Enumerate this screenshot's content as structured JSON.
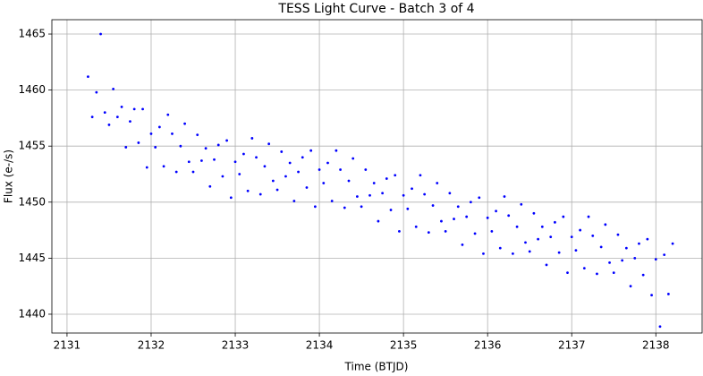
{
  "chart_data": {
    "type": "scatter",
    "title": "TESS Light Curve - Batch 3 of 4",
    "x_label": "Time (BTJD)",
    "y_label": "Flux (e-/s)",
    "grid": true,
    "color": "#0000ff",
    "xlim": [
      2130.82,
      2138.55
    ],
    "ylim": [
      1438.32,
      1466.28
    ],
    "xticks": [
      2131,
      2132,
      2133,
      2134,
      2135,
      2136,
      2137,
      2138
    ],
    "yticks": [
      1440,
      1445,
      1450,
      1455,
      1460,
      1465
    ],
    "x": [
      2131.25,
      2131.3,
      2131.35,
      2131.4,
      2131.45,
      2131.5,
      2131.55,
      2131.6,
      2131.65,
      2131.7,
      2131.75,
      2131.8,
      2131.85,
      2131.9,
      2131.95,
      2132.0,
      2132.05,
      2132.1,
      2132.15,
      2132.2,
      2132.25,
      2132.3,
      2132.35,
      2132.4,
      2132.45,
      2132.5,
      2132.55,
      2132.6,
      2132.65,
      2132.7,
      2132.75,
      2132.8,
      2132.85,
      2132.9,
      2132.95,
      2133.0,
      2133.05,
      2133.1,
      2133.15,
      2133.2,
      2133.25,
      2133.3,
      2133.35,
      2133.4,
      2133.45,
      2133.5,
      2133.55,
      2133.6,
      2133.65,
      2133.7,
      2133.75,
      2133.8,
      2133.85,
      2133.9,
      2133.95,
      2134.0,
      2134.05,
      2134.1,
      2134.15,
      2134.2,
      2134.25,
      2134.3,
      2134.35,
      2134.4,
      2134.45,
      2134.5,
      2134.55,
      2134.6,
      2134.65,
      2134.7,
      2134.75,
      2134.8,
      2134.85,
      2134.9,
      2134.95,
      2135.0,
      2135.05,
      2135.1,
      2135.15,
      2135.2,
      2135.25,
      2135.3,
      2135.35,
      2135.4,
      2135.45,
      2135.5,
      2135.55,
      2135.6,
      2135.65,
      2135.7,
      2135.75,
      2135.8,
      2135.85,
      2135.9,
      2135.95,
      2136.0,
      2136.05,
      2136.1,
      2136.15,
      2136.2,
      2136.25,
      2136.3,
      2136.35,
      2136.4,
      2136.45,
      2136.5,
      2136.55,
      2136.6,
      2136.65,
      2136.7,
      2136.75,
      2136.8,
      2136.85,
      2136.9,
      2136.95,
      2137.0,
      2137.05,
      2137.1,
      2137.15,
      2137.2,
      2137.25,
      2137.3,
      2137.35,
      2137.4,
      2137.45,
      2137.5,
      2137.55,
      2137.6,
      2137.65,
      2137.7,
      2137.75,
      2137.8,
      2137.85,
      2137.9,
      2137.95,
      2138.0,
      2138.05,
      2138.1,
      2138.15,
      2138.2
    ],
    "values": [
      1461.2,
      1457.6,
      1459.8,
      1465.0,
      1458.0,
      1456.9,
      1460.1,
      1457.6,
      1458.5,
      1454.9,
      1457.2,
      1458.3,
      1455.3,
      1458.3,
      1453.1,
      1456.1,
      1454.9,
      1456.7,
      1453.2,
      1457.8,
      1456.1,
      1452.7,
      1455.0,
      1457.0,
      1453.6,
      1452.7,
      1456.0,
      1453.7,
      1454.8,
      1451.4,
      1453.8,
      1455.1,
      1452.3,
      1455.5,
      1450.4,
      1453.6,
      1452.5,
      1454.3,
      1451.0,
      1455.7,
      1454.0,
      1450.7,
      1453.2,
      1455.2,
      1451.9,
      1451.1,
      1454.5,
      1452.3,
      1453.5,
      1450.1,
      1452.7,
      1454.0,
      1451.3,
      1454.6,
      1449.6,
      1452.9,
      1451.7,
      1453.5,
      1450.1,
      1454.6,
      1452.9,
      1449.5,
      1451.9,
      1453.9,
      1450.5,
      1449.6,
      1452.9,
      1450.6,
      1451.7,
      1448.3,
      1450.8,
      1452.1,
      1449.3,
      1452.4,
      1447.4,
      1450.6,
      1449.4,
      1451.2,
      1447.8,
      1452.4,
      1450.7,
      1447.3,
      1449.7,
      1451.7,
      1448.3,
      1447.4,
      1450.8,
      1448.5,
      1449.6,
      1446.2,
      1448.7,
      1450.0,
      1447.2,
      1450.4,
      1445.4,
      1448.6,
      1447.4,
      1449.2,
      1445.9,
      1450.5,
      1448.8,
      1445.4,
      1447.8,
      1449.8,
      1446.4,
      1445.6,
      1449.0,
      1446.7,
      1447.8,
      1444.4,
      1446.9,
      1448.2,
      1445.5,
      1448.7,
      1443.7,
      1446.9,
      1445.7,
      1447.5,
      1444.1,
      1448.7,
      1447.0,
      1443.6,
      1446.0,
      1448.0,
      1444.6,
      1443.7,
      1447.1,
      1444.8,
      1445.9,
      1442.5,
      1445.0,
      1446.3,
      1443.5,
      1446.7,
      1441.7,
      1444.9,
      1438.9,
      1445.3,
      1441.8,
      1446.3
    ]
  }
}
